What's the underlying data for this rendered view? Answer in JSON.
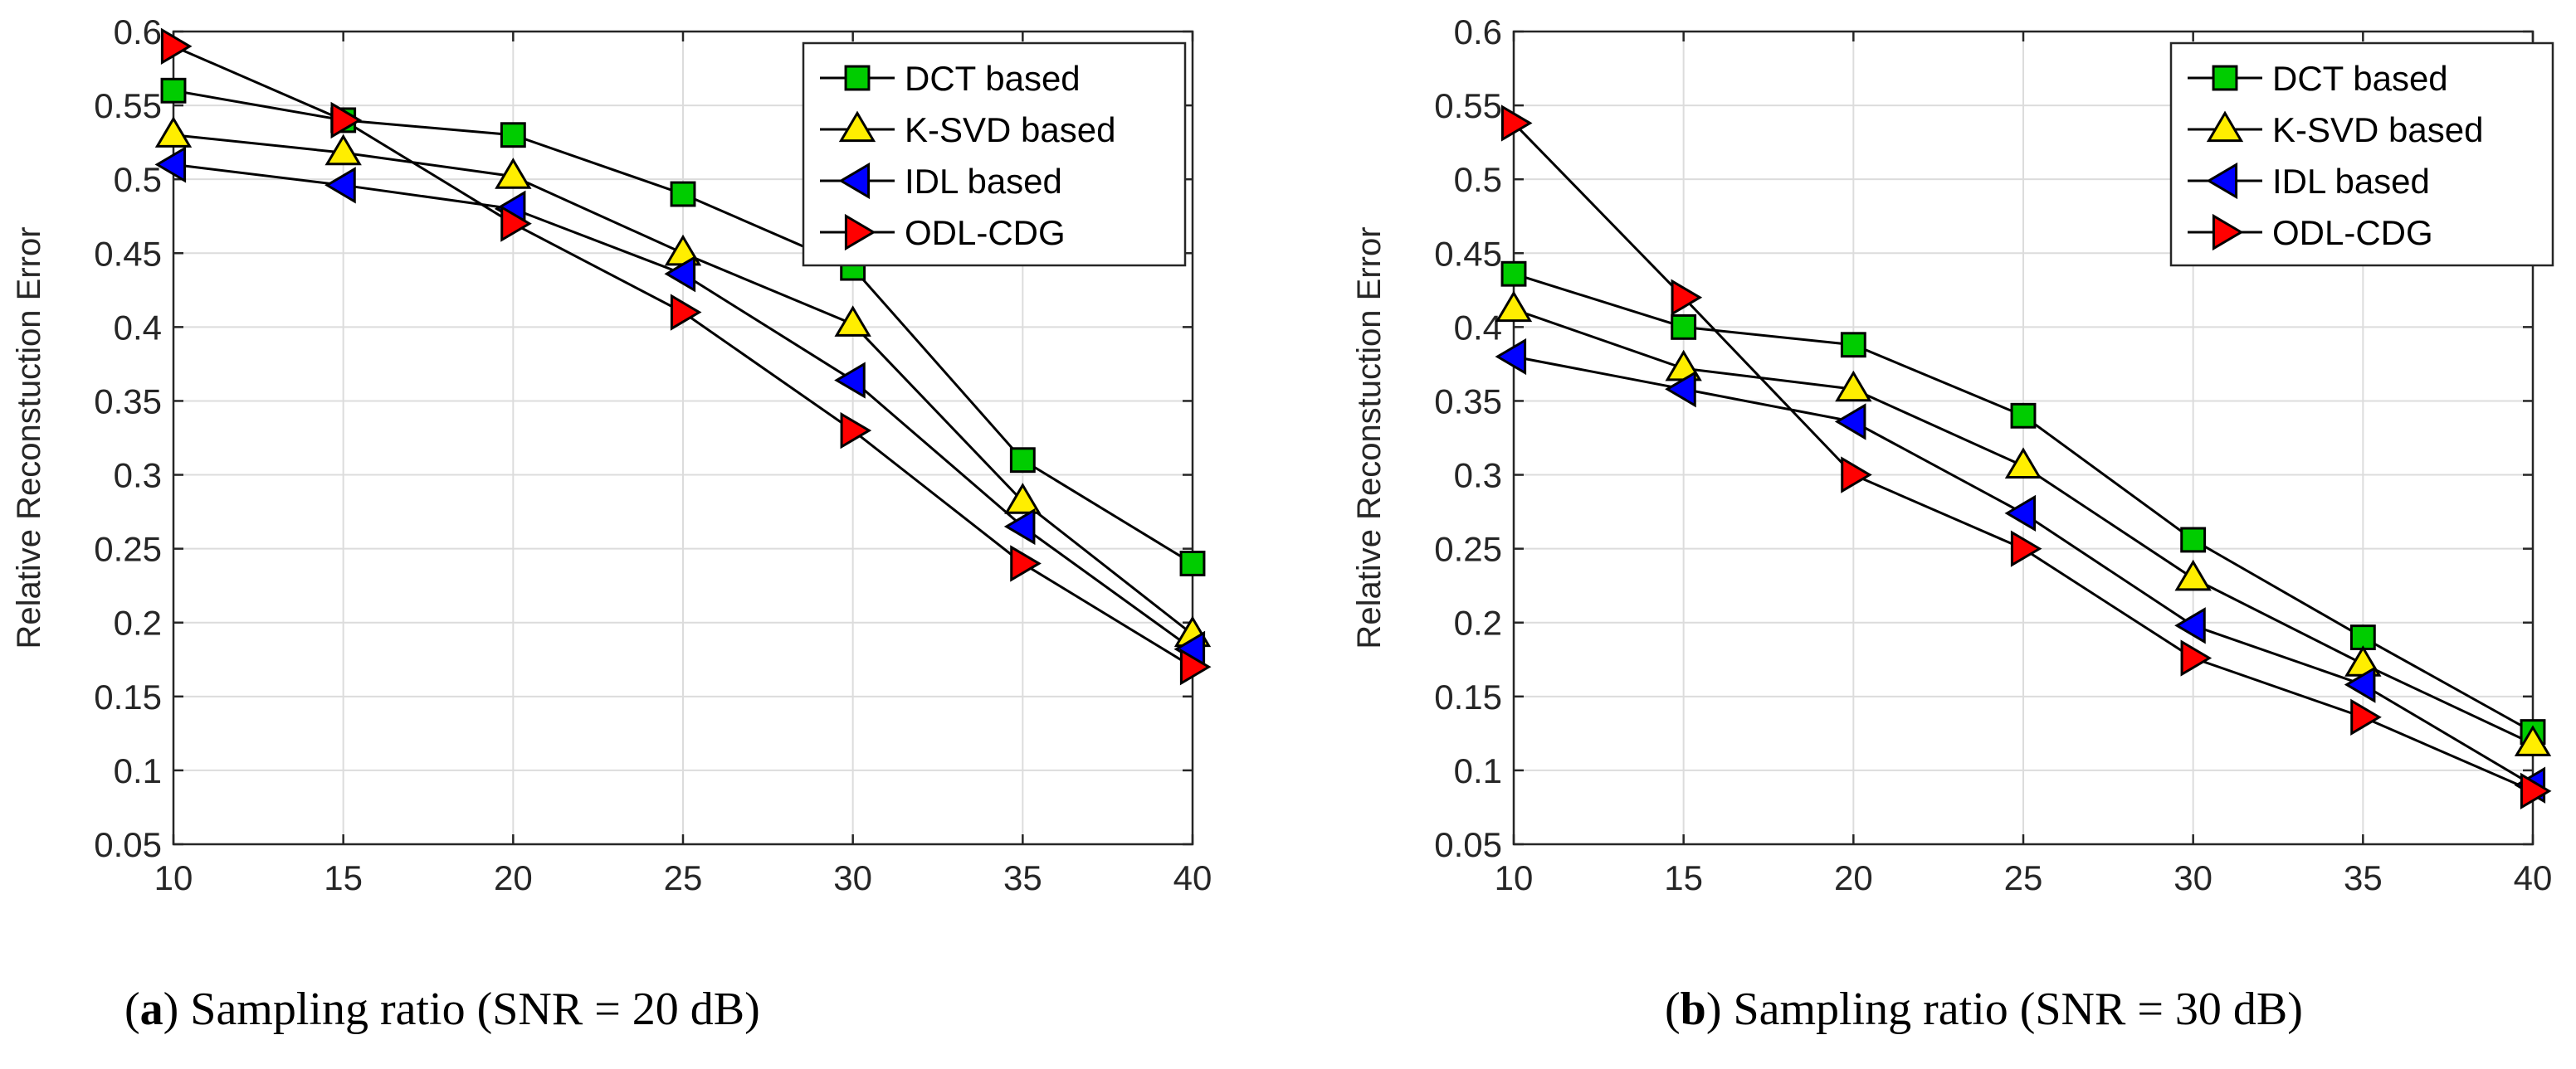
{
  "chart_data": [
    {
      "type": "line",
      "x": [
        10,
        15,
        20,
        25,
        30,
        35,
        40
      ],
      "xlim": [
        10,
        40
      ],
      "ylim": [
        0.05,
        0.6
      ],
      "xticks": [
        "10",
        "15",
        "20",
        "25",
        "30",
        "35",
        "40"
      ],
      "yticks": [
        "0.05",
        "0.1",
        "0.15",
        "0.2",
        "0.25",
        "0.3",
        "0.35",
        "0.4",
        "0.45",
        "0.5",
        "0.55",
        "0.6"
      ],
      "ylabel": "Relative Reconstuction Error",
      "grid": true,
      "legend_position": "top-right",
      "caption": {
        "letter": "a",
        "text": ") Sampling ratio (SNR = 20 dB)"
      },
      "series": [
        {
          "name": "DCT based",
          "marker": "square",
          "color": "#00cc00",
          "values": [
            0.56,
            0.54,
            0.53,
            0.49,
            0.44,
            0.31,
            0.24
          ]
        },
        {
          "name": "K-SVD based",
          "marker": "triangle-up",
          "color": "#ffee00",
          "values": [
            0.53,
            0.518,
            0.502,
            0.45,
            0.402,
            0.282,
            0.192
          ]
        },
        {
          "name": "IDL based",
          "marker": "triangle-left",
          "color": "#0000ff",
          "values": [
            0.51,
            0.496,
            0.48,
            0.436,
            0.364,
            0.265,
            0.182
          ]
        },
        {
          "name": "ODL-CDG",
          "marker": "triangle-right",
          "color": "#ff0000",
          "values": [
            0.59,
            0.54,
            0.47,
            0.41,
            0.33,
            0.24,
            0.17
          ]
        }
      ]
    },
    {
      "type": "line",
      "x": [
        10,
        15,
        20,
        25,
        30,
        35,
        40
      ],
      "xlim": [
        10,
        40
      ],
      "ylim": [
        0.05,
        0.6
      ],
      "xticks": [
        "10",
        "15",
        "20",
        "25",
        "30",
        "35",
        "40"
      ],
      "yticks": [
        "0.05",
        "0.1",
        "0.15",
        "0.2",
        "0.25",
        "0.3",
        "0.35",
        "0.4",
        "0.45",
        "0.5",
        "0.55",
        "0.6"
      ],
      "ylabel": "Relative Reconstuction Error",
      "grid": true,
      "legend_position": "top-right",
      "caption": {
        "letter": "b",
        "text": ") Sampling ratio (SNR = 30 dB)"
      },
      "series": [
        {
          "name": "DCT based",
          "marker": "square",
          "color": "#00cc00",
          "values": [
            0.436,
            0.4,
            0.388,
            0.34,
            0.256,
            0.19,
            0.126
          ]
        },
        {
          "name": "K-SVD based",
          "marker": "triangle-up",
          "color": "#ffee00",
          "values": [
            0.412,
            0.372,
            0.358,
            0.306,
            0.23,
            0.172,
            0.118
          ]
        },
        {
          "name": "IDL based",
          "marker": "triangle-left",
          "color": "#0000ff",
          "values": [
            0.38,
            0.358,
            0.336,
            0.274,
            0.198,
            0.158,
            0.09
          ]
        },
        {
          "name": "ODL-CDG",
          "marker": "triangle-right",
          "color": "#ff0000",
          "values": [
            0.538,
            0.42,
            0.3,
            0.25,
            0.176,
            0.136,
            0.086
          ]
        }
      ]
    }
  ]
}
